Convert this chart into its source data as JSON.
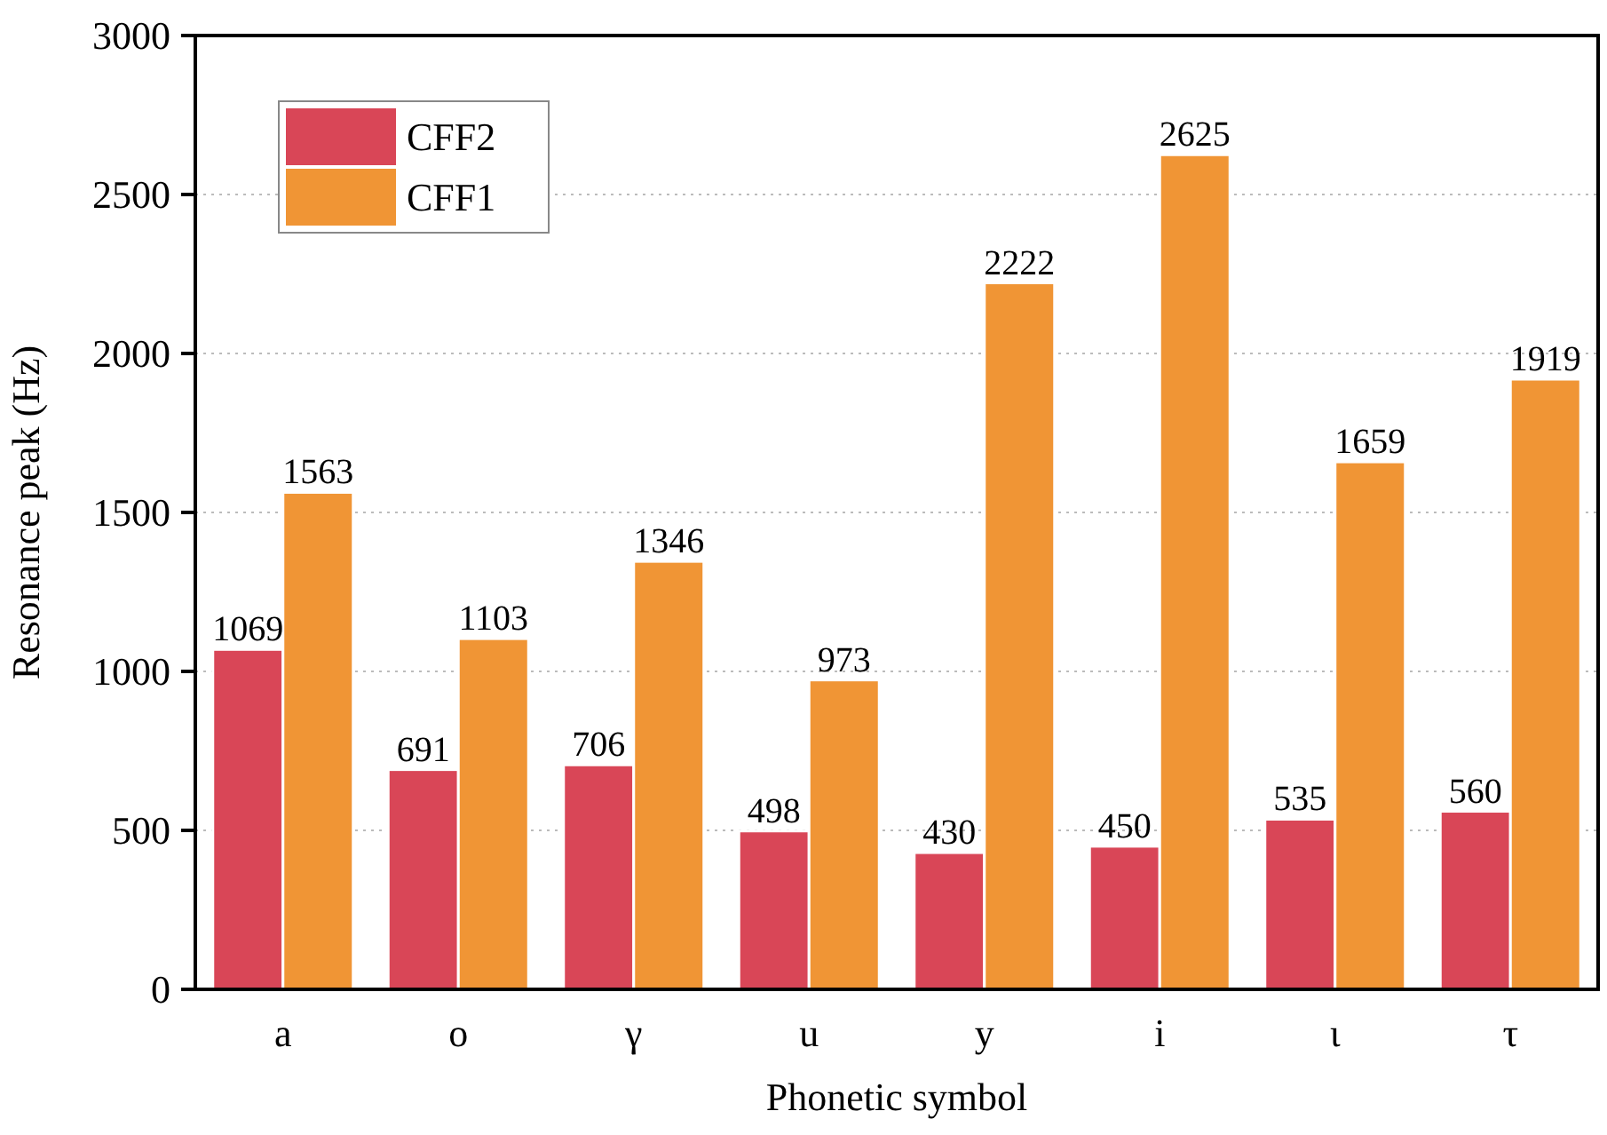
{
  "chart_data": {
    "type": "bar",
    "xlabel": "Phonetic symbol",
    "ylabel": "Resonance peak (Hz)",
    "categories": [
      "a",
      "o",
      "γ",
      "u",
      "y",
      "i",
      "ι",
      "τ"
    ],
    "series": [
      {
        "name": "CFF2",
        "color": "#d94657",
        "values": [
          1069,
          691,
          706,
          498,
          430,
          450,
          535,
          560
        ]
      },
      {
        "name": "CFF1",
        "color": "#f09535",
        "values": [
          1563,
          1103,
          1346,
          973,
          2222,
          2625,
          1659,
          1919
        ]
      }
    ],
    "ylim": [
      0,
      3000
    ],
    "yticks": [
      0,
      500,
      1000,
      1500,
      2000,
      2500,
      3000
    ],
    "grid": "y",
    "legend": "top left",
    "data_labels": true
  }
}
